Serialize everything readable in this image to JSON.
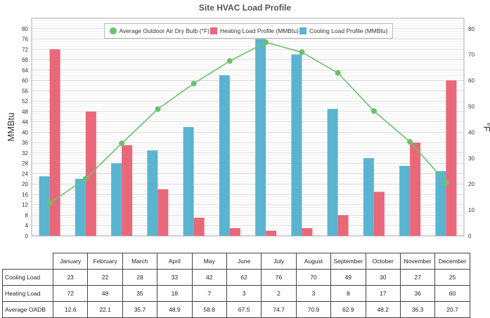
{
  "chart_data": {
    "type": "bar",
    "title": "Site HVAC Load Profile",
    "ylabel_left": "MMBtu",
    "ylabel_right": "°F",
    "ylim_left": [
      0,
      84
    ],
    "ylim_right": [
      0,
      84
    ],
    "yticks_left": [
      0,
      4,
      8,
      12,
      16,
      20,
      24,
      28,
      32,
      36,
      40,
      44,
      48,
      52,
      56,
      60,
      64,
      68,
      72,
      76,
      80
    ],
    "yticks_right": [
      0,
      10,
      20,
      30,
      40,
      50,
      60,
      70,
      80
    ],
    "grid": true,
    "legend_placement": "top-center",
    "categories": [
      "January",
      "February",
      "March",
      "April",
      "May",
      "June",
      "July",
      "August",
      "September",
      "October",
      "November",
      "December"
    ],
    "series": [
      {
        "name": "Average Outdoor Air Dry Bulb (°F)",
        "type": "line",
        "axis": "right",
        "color": "#6cc16b",
        "values": [
          12.6,
          22.1,
          35.7,
          48.9,
          58.8,
          67.5,
          74.7,
          70.9,
          62.9,
          48.2,
          36.3,
          20.7
        ]
      },
      {
        "name": "Heating Load Profile (MMBtu)",
        "type": "bar",
        "axis": "left",
        "color": "#e8687a",
        "values": [
          72,
          48,
          35,
          18,
          7,
          3,
          2,
          3,
          8,
          17,
          36,
          60
        ]
      },
      {
        "name": "Cooling Load Profile (MMBtu)",
        "type": "bar",
        "axis": "left",
        "color": "#5ab4d0",
        "values": [
          23,
          22,
          28,
          33,
          42,
          62,
          76,
          70,
          49,
          30,
          27,
          25
        ]
      }
    ]
  },
  "table": {
    "rows": [
      {
        "label": "Cooling Load",
        "values": [
          "23",
          "22",
          "28",
          "33",
          "42",
          "62",
          "76",
          "70",
          "49",
          "30",
          "27",
          "25"
        ]
      },
      {
        "label": "Heating Load",
        "values": [
          "72",
          "48",
          "35",
          "18",
          "7",
          "3",
          "2",
          "3",
          "8",
          "17",
          "36",
          "60"
        ]
      },
      {
        "label": "Average OADB",
        "values": [
          "12.6",
          "22.1",
          "35.7",
          "48.9",
          "58.8",
          "67.5",
          "74.7",
          "70.9",
          "62.9",
          "48.2",
          "36.3",
          "20.7"
        ]
      }
    ]
  }
}
